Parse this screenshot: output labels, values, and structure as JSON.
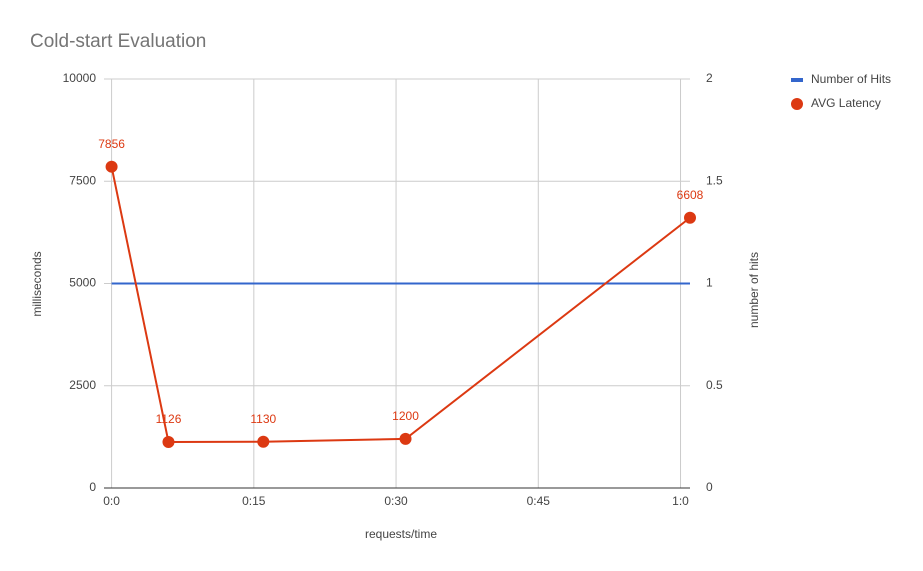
{
  "chart_data": {
    "type": "line",
    "title": "Cold-start Evaluation",
    "x_label": "requests/time",
    "y_label": "milliseconds",
    "y2_label": "number of hits",
    "x": [
      0,
      6,
      16,
      31,
      61
    ],
    "xlim": [
      -0.8,
      61
    ],
    "xticks": [
      {
        "value": 0,
        "label": "0:0"
      },
      {
        "value": 15,
        "label": "0:15"
      },
      {
        "value": 30,
        "label": "0:30"
      },
      {
        "value": 45,
        "label": "0:45"
      },
      {
        "value": 60,
        "label": "1:0"
      }
    ],
    "ylim": [
      0,
      10000
    ],
    "yticks": [
      0,
      2500,
      5000,
      7500,
      10000
    ],
    "y2lim": [
      0,
      2
    ],
    "y2ticks": [
      0,
      0.5,
      1,
      1.5,
      2
    ],
    "grid": true,
    "legend": "right",
    "series": [
      {
        "name": "Number of Hits",
        "color": "#3366cc",
        "axis": "y2",
        "values": [
          1,
          1,
          1,
          1,
          1
        ]
      },
      {
        "name": "AVG Latency",
        "color": "#dc3912",
        "values": [
          7856,
          1126,
          1130,
          1200,
          6608
        ],
        "markers": true,
        "data_labels": true
      }
    ]
  }
}
